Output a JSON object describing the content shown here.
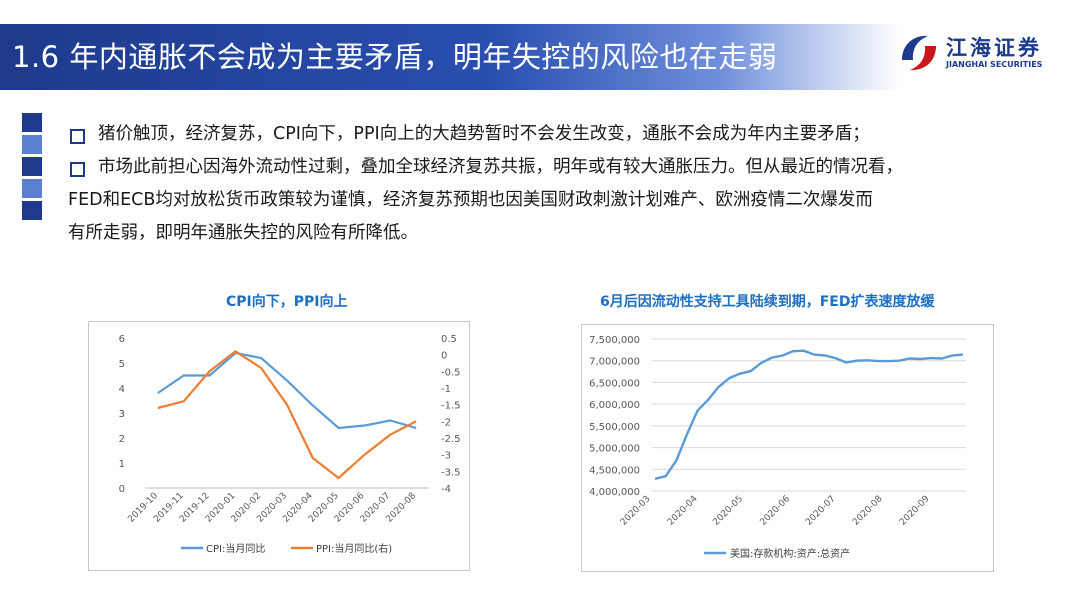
{
  "header": {
    "title": "1.6 年内通胀不会成为主要矛盾，明年失控的风险也在走弱"
  },
  "logo": {
    "cn": "江海证券",
    "en": "JIANGHAI SECURITIES"
  },
  "colors": {
    "brand_blue": "#1d3a8c",
    "chart_title": "#1d6fc2",
    "cpi": "#5b9bd5",
    "ppi": "#ed7d31"
  },
  "bullets": [
    {
      "lines": [
        "猪价触顶，经济复苏，CPI向下，PPI向上的大趋势暂时不会发生改变，通胀不会成为年内主要矛盾；"
      ]
    },
    {
      "lines": [
        "市场此前担心因海外流动性过剩，叠加全球经济复苏共振，明年或有较大通胀压力。但从最近的情况看，",
        "FED和ECB均对放松货币政策较为谨慎，经济复苏预期也因美国财政刺激计划难产、欧洲疫情二次爆发而",
        "有所走弱，即明年通胀失控的风险有所降低。"
      ]
    }
  ],
  "chart_data": [
    {
      "type": "line",
      "title": "CPI向下，PPI向上",
      "categories": [
        "2019-10",
        "2019-11",
        "2019-12",
        "2020-01",
        "2020-02",
        "2020-03",
        "2020-04",
        "2020-05",
        "2020-06",
        "2020-07",
        "2020-08"
      ],
      "series": [
        {
          "name": "CPI:当月同比",
          "axis": "left",
          "color": "#5b9bd5",
          "values": [
            3.8,
            4.5,
            4.5,
            5.4,
            5.2,
            4.3,
            3.3,
            2.4,
            2.5,
            2.7,
            2.4
          ]
        },
        {
          "name": "PPI:当月同比(右)",
          "axis": "right",
          "color": "#ed7d31",
          "values": [
            -1.6,
            -1.4,
            -0.5,
            0.1,
            -0.4,
            -1.5,
            -3.1,
            -3.7,
            -3.0,
            -2.4,
            -2.0
          ]
        }
      ],
      "left_axis": {
        "ylim": [
          0,
          6
        ],
        "ticks": [
          "6",
          "5",
          "4",
          "3",
          "2",
          "1",
          "0"
        ]
      },
      "right_axis": {
        "ylim": [
          -4,
          0.5
        ],
        "ticks": [
          "0.5",
          "0",
          "-0.5",
          "-1",
          "-1.5",
          "-2",
          "-2.5",
          "-3",
          "-3.5",
          "-4"
        ]
      },
      "grid": false,
      "legend": "bottom"
    },
    {
      "type": "line",
      "title": "6月后因流动性支持工具陆续到期，FED扩表速度放缓",
      "x_ticks": [
        "2020-03",
        "2020-04",
        "2020-05",
        "2020-06",
        "2020-07",
        "2020-08",
        "2020-09"
      ],
      "series": [
        {
          "name": "美国:存款机构:资产:总资产",
          "color": "#5b9bd5",
          "x": [
            "2020-03-04",
            "2020-03-11",
            "2020-03-18",
            "2020-03-25",
            "2020-04-01",
            "2020-04-08",
            "2020-04-15",
            "2020-04-22",
            "2020-04-29",
            "2020-05-06",
            "2020-05-13",
            "2020-05-20",
            "2020-05-27",
            "2020-06-03",
            "2020-06-10",
            "2020-06-17",
            "2020-06-24",
            "2020-07-01",
            "2020-07-08",
            "2020-07-15",
            "2020-07-22",
            "2020-07-29",
            "2020-08-05",
            "2020-08-12",
            "2020-08-19",
            "2020-08-26",
            "2020-09-02",
            "2020-09-09",
            "2020-09-16",
            "2020-09-23"
          ],
          "values": [
            4280000,
            4340000,
            4700000,
            5300000,
            5850000,
            6100000,
            6400000,
            6600000,
            6700000,
            6760000,
            6950000,
            7070000,
            7120000,
            7220000,
            7230000,
            7140000,
            7120000,
            7060000,
            6960000,
            7000000,
            7010000,
            6990000,
            6990000,
            7000000,
            7050000,
            7040000,
            7060000,
            7050000,
            7120000,
            7140000
          ]
        }
      ],
      "ylim": [
        4000000,
        7500000
      ],
      "y_ticks": [
        "7,500,000",
        "7,000,000",
        "6,500,000",
        "6,000,000",
        "5,500,000",
        "5,000,000",
        "4,500,000",
        "4,000,000"
      ],
      "grid": true,
      "legend": "bottom"
    }
  ]
}
